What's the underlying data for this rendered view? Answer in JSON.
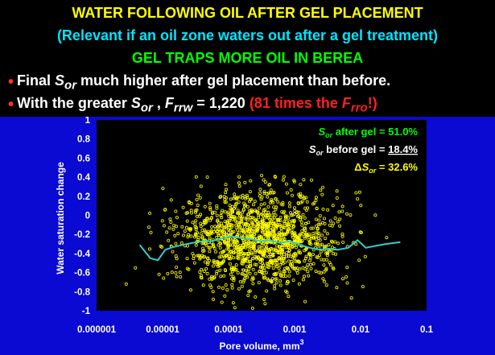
{
  "header": {
    "title": "WATER FOLLOWING OIL AFTER GEL PLACEMENT",
    "subtitle": "(Relevant if an oil zone waters out after a gel treatment)",
    "claim": "GEL TRAPS MORE OIL IN BEREA",
    "bullet1": {
      "bullet": "•",
      "pre": "Final ",
      "sym": "S",
      "sub": "or",
      "post": " much higher after gel placement than before."
    },
    "bullet2": {
      "bullet": "•",
      "pre": "With the greater ",
      "sym": "S",
      "sub": "or",
      "mid": " , ",
      "sym2": "F",
      "sub2": "rrw",
      "post": " = 1,220 ",
      "red_pre": "(81 times the ",
      "red_sym": "F",
      "red_sub": "rro",
      "red_post": "!)"
    }
  },
  "colors": {
    "background": "#0a0ad2",
    "header_bg": "#000000",
    "title": "#ffff00",
    "subtitle": "#00e5ff",
    "claim": "#00ff00",
    "emphasis": "#ff2020",
    "points": "#ffff00",
    "trend": "#33cccc"
  },
  "chart_data": {
    "type": "scatter",
    "xscale": "log",
    "xlim": [
      1e-06,
      0.1
    ],
    "ylim": [
      -1,
      1
    ],
    "xlabel": "Pore volume, mm",
    "xlabel_sup": "3",
    "ylabel": "Water saturation change",
    "x_ticks": [
      "0.000001",
      "0.00001",
      "0.0001",
      "0.001",
      "0.01",
      "0.1"
    ],
    "y_ticks": [
      "1",
      "0.8",
      "0.6",
      "0.4",
      "0.2",
      "0",
      "-0.2",
      "-0.4",
      "-0.6",
      "-0.8",
      "-1"
    ],
    "annotations": [
      {
        "pre": "",
        "sym": "S",
        "sub": "or",
        "text": " after gel = ",
        "value": "51.0%",
        "color": "#00ff00",
        "underline": false
      },
      {
        "pre": "",
        "sym": "S",
        "sub": "or",
        "text": " before gel = ",
        "value": "18.4%",
        "color": "#ffffff",
        "underline": true
      },
      {
        "pre": "Δ",
        "sym": "S",
        "sub": "or",
        "text": " = ",
        "value": "32.6%",
        "color": "#ffff00",
        "underline": false
      }
    ],
    "series": [
      {
        "kind": "points",
        "distribution": {
          "center_log10x": -3.55,
          "spread_log10x": 0.62,
          "mean_y": -0.25,
          "spread_y": 0.26,
          "count": 1400
        }
      },
      {
        "kind": "trend-line",
        "x": [
          4.5e-06,
          6.5e-06,
          8.5e-06,
          1.1e-05,
          1.5e-05,
          2e-05,
          2.8e-05,
          4e-05,
          5.6e-05,
          8e-05,
          0.00011,
          0.00016,
          0.00022,
          0.0003,
          0.00042,
          0.0006,
          0.00085,
          0.0012,
          0.0017,
          0.0024,
          0.0032,
          0.0045,
          0.0065,
          0.009,
          0.012,
          0.017,
          0.024,
          0.032,
          0.04
        ],
        "values": [
          -0.31,
          -0.45,
          -0.47,
          -0.36,
          -0.33,
          -0.31,
          -0.29,
          -0.27,
          -0.27,
          -0.24,
          -0.22,
          -0.24,
          -0.25,
          -0.27,
          -0.26,
          -0.29,
          -0.27,
          -0.31,
          -0.34,
          -0.36,
          -0.35,
          -0.36,
          -0.34,
          -0.26,
          -0.34,
          -0.32,
          -0.3,
          -0.29,
          -0.28
        ]
      }
    ]
  }
}
